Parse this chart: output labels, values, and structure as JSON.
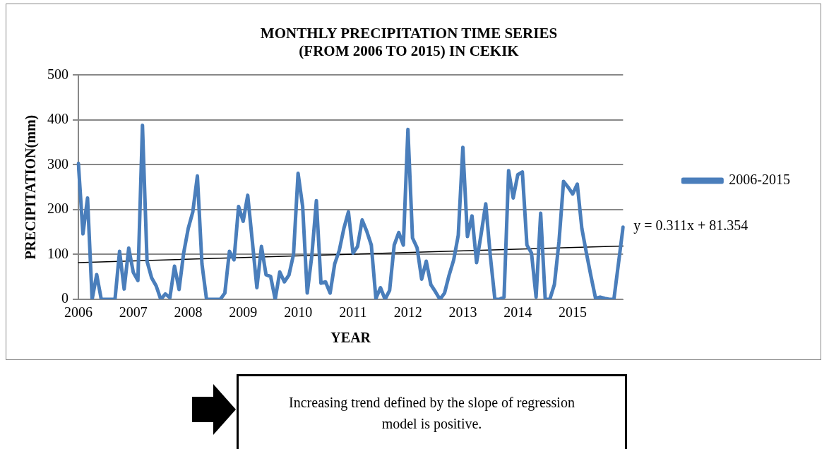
{
  "chart_data": {
    "type": "line",
    "title": "MONTHLY PRECIPITATION TIME SERIES\n(FROM 2006 TO 2015) IN CEKIK",
    "xlabel": "YEAR",
    "ylabel": "PRECIPITATION(mm)",
    "categories": [
      "2006",
      null,
      null,
      null,
      null,
      null,
      null,
      null,
      null,
      null,
      null,
      null,
      "2007",
      null,
      null,
      null,
      null,
      null,
      null,
      null,
      null,
      null,
      null,
      null,
      "2008",
      null,
      null,
      null,
      null,
      null,
      null,
      null,
      null,
      null,
      null,
      null,
      "2009",
      null,
      null,
      null,
      null,
      null,
      null,
      null,
      null,
      null,
      null,
      null,
      "2010",
      null,
      null,
      null,
      null,
      null,
      null,
      null,
      null,
      null,
      null,
      null,
      "2011",
      null,
      null,
      null,
      null,
      null,
      null,
      null,
      null,
      null,
      null,
      null,
      "2012",
      null,
      null,
      null,
      null,
      null,
      null,
      null,
      null,
      null,
      null,
      null,
      "2013",
      null,
      null,
      null,
      null,
      null,
      null,
      null,
      null,
      null,
      null,
      null,
      "2014",
      null,
      null,
      null,
      null,
      null,
      null,
      null,
      null,
      null,
      null,
      null,
      "2015",
      null,
      null,
      null,
      null,
      null,
      null,
      null,
      null,
      null,
      null,
      null
    ],
    "series": [
      {
        "name": "2006-2015",
        "color": "#4a7ebb",
        "values": [
          303,
          146,
          226,
          0,
          55,
          0,
          0,
          0,
          0,
          107,
          23,
          114,
          60,
          42,
          388,
          85,
          48,
          30,
          0,
          12,
          4,
          74,
          22,
          103,
          158,
          195,
          275,
          79,
          0,
          0,
          0,
          0,
          14,
          107,
          88,
          207,
          174,
          232,
          130,
          26,
          118,
          55,
          51,
          0,
          61,
          39,
          54,
          100,
          281,
          207,
          14,
          97,
          220,
          36,
          39,
          14,
          79,
          109,
          158,
          195,
          103,
          118,
          177,
          152,
          121,
          2,
          26,
          0,
          20,
          121,
          149,
          121,
          379,
          137,
          115,
          45,
          85,
          33,
          17,
          0,
          14,
          54,
          88,
          143,
          339,
          140,
          186,
          82,
          146,
          213,
          97,
          0,
          0,
          5,
          287,
          226,
          278,
          284,
          121,
          103,
          5,
          192,
          0,
          0,
          33,
          128,
          263,
          250,
          235,
          257,
          158,
          103,
          51,
          2,
          5,
          2,
          0,
          0,
          80,
          161
        ]
      },
      {
        "type": "line",
        "color": "#000000",
        "values": [
          82,
          null,
          null,
          null,
          null,
          null,
          null,
          null,
          null,
          null,
          null,
          null,
          null,
          null,
          null,
          null,
          null,
          null,
          null,
          null,
          null,
          null,
          null,
          null,
          null,
          null,
          null,
          null,
          null,
          null,
          null,
          null,
          null,
          null,
          null,
          null,
          null,
          null,
          null,
          null,
          null,
          null,
          null,
          null,
          null,
          null,
          null,
          null,
          null,
          null,
          null,
          null,
          null,
          null,
          null,
          null,
          null,
          null,
          null,
          null,
          null,
          null,
          null,
          null,
          null,
          null,
          null,
          null,
          null,
          null,
          null,
          null,
          null,
          null,
          null,
          null,
          null,
          null,
          null,
          null,
          null,
          null,
          null,
          null,
          null,
          null,
          null,
          null,
          null,
          null,
          null,
          null,
          null,
          null,
          null,
          null,
          null,
          null,
          null,
          null,
          null,
          null,
          null,
          null,
          null,
          null,
          null,
          null,
          null,
          null,
          null,
          null,
          null,
          null,
          null,
          null,
          null,
          null,
          null,
          119
        ]
      }
    ],
    "ylim": [
      0,
      500
    ],
    "yticks": [
      0,
      100,
      200,
      300,
      400,
      500
    ],
    "grid": "y",
    "legend": "right",
    "marker": "none",
    "annotations": [
      "y = 0.311x + 81.354",
      "Increasing trend defined by the slope of regression model is positive."
    ]
  }
}
